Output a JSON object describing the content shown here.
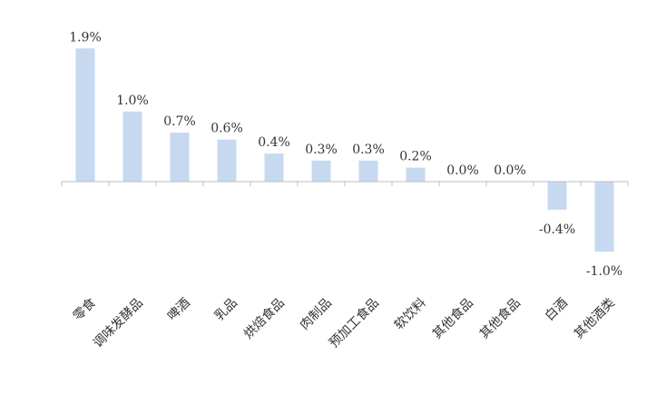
{
  "chart_data": {
    "type": "bar",
    "categories": [
      "零食",
      "调味发酵品",
      "啤酒",
      "乳品",
      "烘焙食品",
      "肉制品",
      "预加工食品",
      "软饮料",
      "其他食品",
      "其他食品",
      "白酒",
      "其他酒类"
    ],
    "values": [
      1.9,
      1.0,
      0.7,
      0.6,
      0.4,
      0.3,
      0.3,
      0.2,
      0.0,
      0.0,
      -0.4,
      -1.0
    ],
    "value_labels": [
      "1.9%",
      "1.0%",
      "0.7%",
      "0.6%",
      "0.4%",
      "0.3%",
      "0.3%",
      "0.2%",
      "0.0%",
      "0.0%",
      "-0.4%",
      "-1.0%"
    ],
    "title": "",
    "xlabel": "",
    "ylabel": "",
    "ylim": [
      -1.0,
      1.9
    ],
    "grid": false,
    "legend": "none",
    "bar_color": "#c6d9f1",
    "axis_color": "#bfbfbf"
  }
}
